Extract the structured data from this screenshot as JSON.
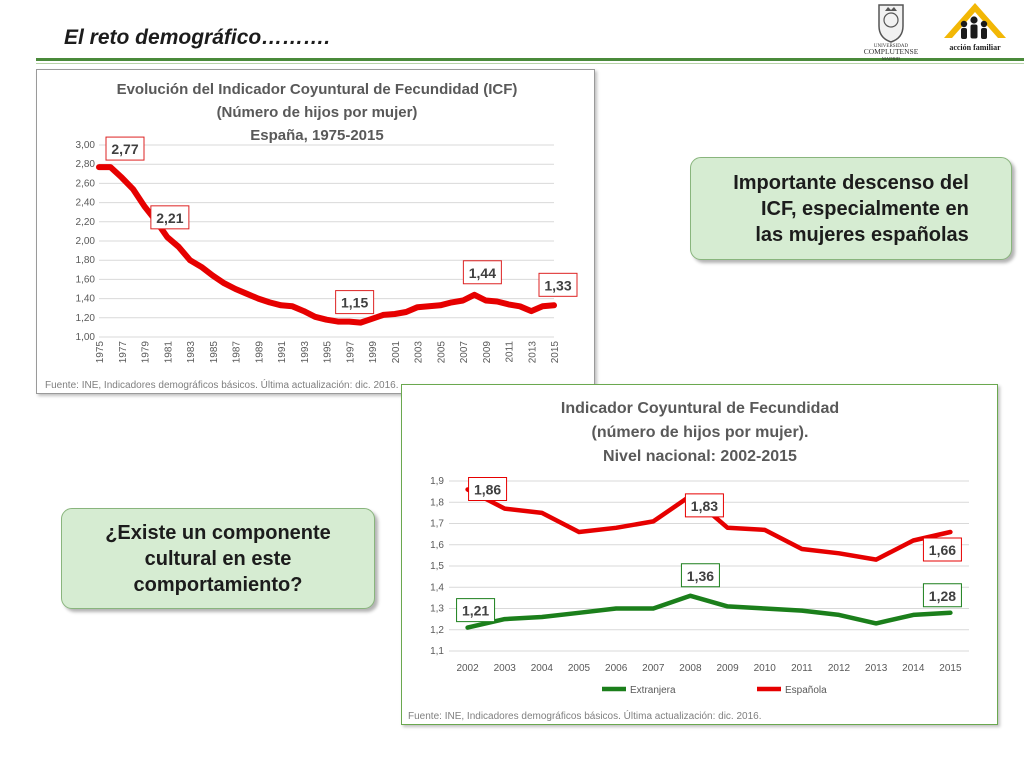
{
  "slide": {
    "title": "El reto demográfico………."
  },
  "logos": {
    "ucm": [
      "UNIVERSIDAD",
      "COMPLUTENSE",
      "MADRID"
    ],
    "acf": "acción familiar"
  },
  "callouts": {
    "right": "Importante descenso del\nICF, especialmente en\nlas mujeres españolas",
    "left": "¿Existe un componente\ncultural en este\ncomportamiento?"
  },
  "colors": {
    "red": "#e60000",
    "green": "#1b7f1b",
    "rule": "#4a8a3a",
    "callout_bg": "#d6ecd2"
  },
  "chart_data": [
    {
      "type": "line",
      "title": [
        "Evolución del Indicador Coyuntural de Fecundidad (ICF)",
        "(Número de hijos por mujer)",
        "España, 1975-2015"
      ],
      "source": "Fuente: INE, Indicadores demográficos básicos. Última actualización: dic. 2016.",
      "x_ticks": [
        "1975",
        "1977",
        "1979",
        "1981",
        "1983",
        "1985",
        "1987",
        "1989",
        "1991",
        "1993",
        "1995",
        "1997",
        "1999",
        "2001",
        "2003",
        "2005",
        "2007",
        "2009",
        "2011",
        "2013",
        "2015"
      ],
      "y_ticks": [
        "1,00",
        "1,20",
        "1,40",
        "1,60",
        "1,80",
        "2,00",
        "2,20",
        "2,40",
        "2,60",
        "2,80",
        "3,00"
      ],
      "ylim": [
        1.0,
        3.0
      ],
      "grid": true,
      "x": [
        1975,
        1976,
        1977,
        1978,
        1979,
        1980,
        1981,
        1982,
        1983,
        1984,
        1985,
        1986,
        1987,
        1988,
        1989,
        1990,
        1991,
        1992,
        1993,
        1994,
        1995,
        1996,
        1997,
        1998,
        1999,
        2000,
        2001,
        2002,
        2003,
        2004,
        2005,
        2006,
        2007,
        2008,
        2009,
        2010,
        2011,
        2012,
        2013,
        2014,
        2015
      ],
      "series": [
        {
          "values": [
            2.77,
            2.77,
            2.66,
            2.54,
            2.36,
            2.21,
            2.04,
            1.94,
            1.8,
            1.73,
            1.64,
            1.56,
            1.5,
            1.45,
            1.4,
            1.36,
            1.33,
            1.32,
            1.27,
            1.21,
            1.18,
            1.16,
            1.16,
            1.15,
            1.19,
            1.23,
            1.24,
            1.26,
            1.31,
            1.32,
            1.33,
            1.36,
            1.38,
            1.44,
            1.38,
            1.37,
            1.34,
            1.32,
            1.27,
            1.32,
            1.33
          ],
          "color": "#e60000"
        }
      ],
      "data_labels": [
        {
          "x": 1975,
          "text": "2,77"
        },
        {
          "x": 1980,
          "text": "2,21"
        },
        {
          "x": 1998,
          "text": "1,15"
        },
        {
          "x": 2008,
          "text": "1,44"
        },
        {
          "x": 2015,
          "text": "1,33"
        }
      ]
    },
    {
      "type": "line",
      "title": [
        "Indicador Coyuntural de Fecundidad",
        "(número de hijos por mujer).",
        "Nivel nacional: 2002-2015"
      ],
      "source": "Fuente: INE, Indicadores demográficos básicos. Última actualización: dic. 2016.",
      "categories": [
        "2002",
        "2003",
        "2004",
        "2005",
        "2006",
        "2007",
        "2008",
        "2009",
        "2010",
        "2011",
        "2012",
        "2013",
        "2014",
        "2015"
      ],
      "y_ticks": [
        "1,1",
        "1,2",
        "1,3",
        "1,4",
        "1,5",
        "1,6",
        "1,7",
        "1,8",
        "1,9"
      ],
      "ylim": [
        1.1,
        1.9
      ],
      "grid": true,
      "legend": "bottom",
      "series": [
        {
          "name": "Extranjera",
          "color": "#1b7f1b",
          "values": [
            1.21,
            1.25,
            1.26,
            1.28,
            1.3,
            1.3,
            1.36,
            1.31,
            1.3,
            1.29,
            1.27,
            1.23,
            1.27,
            1.28
          ]
        },
        {
          "name": "Española",
          "color": "#e60000",
          "values": [
            1.86,
            1.77,
            1.75,
            1.66,
            1.68,
            1.71,
            1.83,
            1.68,
            1.67,
            1.58,
            1.56,
            1.53,
            1.62,
            1.66
          ]
        }
      ],
      "data_labels": [
        {
          "series": 1,
          "index": 0,
          "text": "1,86"
        },
        {
          "series": 1,
          "index": 6,
          "text": "1,83"
        },
        {
          "series": 1,
          "index": 13,
          "text": "1,66"
        },
        {
          "series": 0,
          "index": 0,
          "text": "1,21"
        },
        {
          "series": 0,
          "index": 6,
          "text": "1,36"
        },
        {
          "series": 0,
          "index": 13,
          "text": "1,28"
        }
      ]
    }
  ]
}
